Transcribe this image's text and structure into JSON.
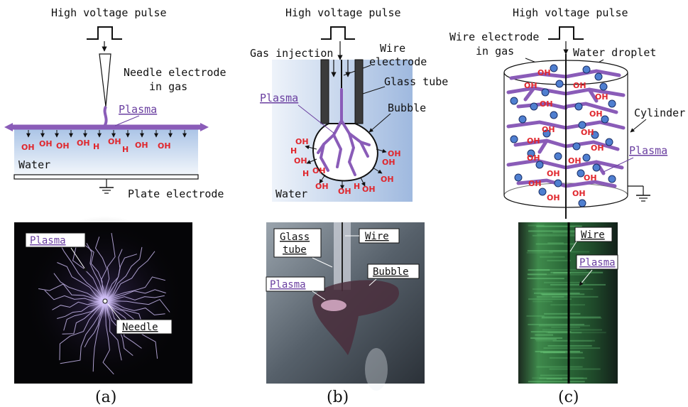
{
  "panel_a": {
    "top_label": "High voltage pulse",
    "needle_label_1": "Needle electrode",
    "needle_label_2": "in gas",
    "plasma_label": "Plasma",
    "water_label": "Water",
    "plate_label": "Plate electrode",
    "oh_labels": [
      "OH",
      "OH",
      "OH",
      "OH",
      "H",
      "OH",
      "H",
      "OH",
      "OH"
    ],
    "photo_plasma_label": "Plasma",
    "photo_needle_label": "Needle",
    "caption": "(a)"
  },
  "panel_b": {
    "top_label": "High voltage pulse",
    "gas_label": "Gas injection",
    "wire_label_1": "Wire",
    "wire_label_2": "electrode",
    "glass_label": "Glass tube",
    "plasma_label": "Plasma",
    "bubble_label": "Bubble",
    "water_label": "Water",
    "oh_labels": [
      "OH",
      "H",
      "OH",
      "OH",
      "H",
      "OH",
      "OH",
      "H",
      "OH",
      "OH",
      "OH",
      "OH"
    ],
    "photo_glass_label_1": "Glass",
    "photo_glass_label_2": "tube",
    "photo_wire_label": "Wire",
    "photo_bubble_label": "Bubble",
    "photo_plasma_label": "Plasma",
    "caption": "(b)"
  },
  "panel_c": {
    "top_label": "High voltage pulse",
    "wire_label_1": "Wire electrode",
    "wire_label_2": "in gas",
    "droplet_label": "Water droplet",
    "cylinder_label": "Cylinder",
    "plasma_label": "Plasma",
    "oh_labels": [
      "OH",
      "OH",
      "OH",
      "OH",
      "OH",
      "OH",
      "OH",
      "OH",
      "OH",
      "OH",
      "OH",
      "OH",
      "OH",
      "OH",
      "OH",
      "OH",
      "OH"
    ],
    "photo_wire_label": "Wire",
    "photo_plasma_label": "Plasma",
    "caption": "(c)"
  },
  "colors": {
    "plasma": "#8a5cb8",
    "oh": "#e0262c",
    "droplet": "#4f7fd0",
    "water_top": "#a9c3e6",
    "water_bottom": "#eef3fa"
  }
}
